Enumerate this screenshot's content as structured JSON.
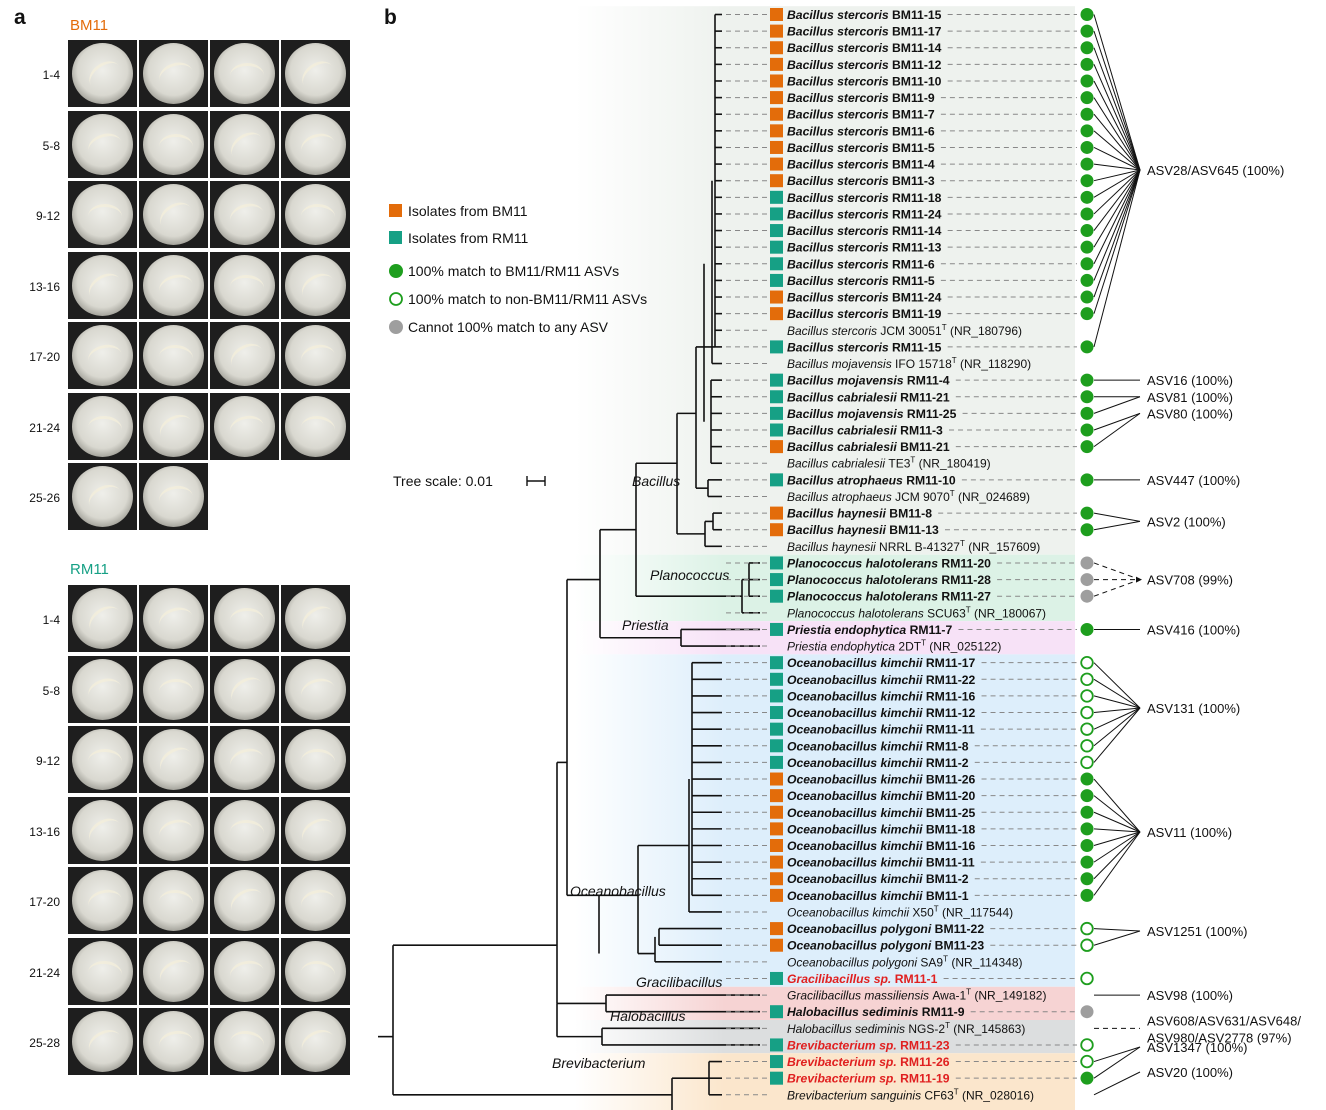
{
  "panel_a": {
    "letter": "a",
    "groups": [
      {
        "title": "BM11",
        "color": "#E36C0A",
        "rows": [
          {
            "label": "1-4",
            "plates": 4
          },
          {
            "label": "5-8",
            "plates": 4
          },
          {
            "label": "9-12",
            "plates": 4
          },
          {
            "label": "13-16",
            "plates": 4
          },
          {
            "label": "17-20",
            "plates": 4
          },
          {
            "label": "21-24",
            "plates": 4
          },
          {
            "label": "25-26",
            "plates": 2
          }
        ]
      },
      {
        "title": "RM11",
        "color": "#16A085",
        "rows": [
          {
            "label": "1-4",
            "plates": 4
          },
          {
            "label": "5-8",
            "plates": 4
          },
          {
            "label": "9-12",
            "plates": 4
          },
          {
            "label": "13-16",
            "plates": 4
          },
          {
            "label": "17-20",
            "plates": 4
          },
          {
            "label": "21-24",
            "plates": 4
          },
          {
            "label": "25-28",
            "plates": 4
          }
        ]
      }
    ]
  },
  "panel_b": {
    "letter": "b",
    "colors": {
      "bm11": "#E36C0A",
      "rm11": "#16A085",
      "match": "#1E9E1E",
      "nomatch": "#9E9E9E",
      "novel": "#E02020"
    },
    "legend": [
      {
        "marker": "square-bm",
        "label": "Isolates from BM11"
      },
      {
        "marker": "square-rm",
        "label": "Isolates from RM11"
      },
      {
        "marker": "circle-filled",
        "label": "100% match to BM11/RM11 ASVs"
      },
      {
        "marker": "circle-open",
        "label": "100% match to non-BM11/RM11 ASVs"
      },
      {
        "marker": "circle-gray",
        "label": "Cannot 100% match to any ASV"
      }
    ],
    "tree_scale": "Tree scale: 0.01",
    "clades": [
      {
        "name": "Bacillus",
        "bg": "#EEF2EE"
      },
      {
        "name": "Planococcus",
        "bg": "#DCF2E6"
      },
      {
        "name": "Priestia",
        "bg": "#F7E2F7"
      },
      {
        "name": "Oceanobacillus",
        "bg": "#DDEEFB"
      },
      {
        "name": "Gracilibacillus",
        "bg": "#F6D3D3"
      },
      {
        "name": "Halobacillus",
        "bg": "#DCDEDF"
      },
      {
        "name": "Brevibacterium",
        "bg": "#FBE6CC"
      }
    ],
    "leaves": [
      {
        "g": "Bacillus stercoris",
        "s": "BM11-15",
        "src": "bm",
        "m": "filled"
      },
      {
        "g": "Bacillus stercoris",
        "s": "BM11-17",
        "src": "bm",
        "m": "filled"
      },
      {
        "g": "Bacillus stercoris",
        "s": "BM11-14",
        "src": "bm",
        "m": "filled"
      },
      {
        "g": "Bacillus stercoris",
        "s": "BM11-12",
        "src": "bm",
        "m": "filled"
      },
      {
        "g": "Bacillus stercoris",
        "s": "BM11-10",
        "src": "bm",
        "m": "filled"
      },
      {
        "g": "Bacillus stercoris",
        "s": "BM11-9",
        "src": "bm",
        "m": "filled"
      },
      {
        "g": "Bacillus stercoris",
        "s": "BM11-7",
        "src": "bm",
        "m": "filled"
      },
      {
        "g": "Bacillus stercoris",
        "s": "BM11-6",
        "src": "bm",
        "m": "filled"
      },
      {
        "g": "Bacillus stercoris",
        "s": "BM11-5",
        "src": "bm",
        "m": "filled"
      },
      {
        "g": "Bacillus stercoris",
        "s": "BM11-4",
        "src": "bm",
        "m": "filled"
      },
      {
        "g": "Bacillus stercoris",
        "s": "BM11-3",
        "src": "bm",
        "m": "filled"
      },
      {
        "g": "Bacillus stercoris",
        "s": "RM11-18",
        "src": "rm",
        "m": "filled"
      },
      {
        "g": "Bacillus stercoris",
        "s": "RM11-24",
        "src": "rm",
        "m": "filled"
      },
      {
        "g": "Bacillus stercoris",
        "s": "RM11-14",
        "src": "rm",
        "m": "filled"
      },
      {
        "g": "Bacillus stercoris",
        "s": "RM11-13",
        "src": "rm",
        "m": "filled"
      },
      {
        "g": "Bacillus stercoris",
        "s": "RM11-6",
        "src": "rm",
        "m": "filled"
      },
      {
        "g": "Bacillus stercoris",
        "s": "RM11-5",
        "src": "rm",
        "m": "filled"
      },
      {
        "g": "Bacillus stercoris",
        "s": "BM11-24",
        "src": "bm",
        "m": "filled"
      },
      {
        "g": "Bacillus stercoris",
        "s": "BM11-19",
        "src": "bm",
        "m": "filled"
      },
      {
        "ref": true,
        "g": "Bacillus stercoris",
        "s": "JCM 30051",
        "t": "T",
        "acc": " (NR_180796)"
      },
      {
        "g": "Bacillus stercoris",
        "s": "RM11-15",
        "src": "rm",
        "m": "filled"
      },
      {
        "ref": true,
        "g": "Bacillus mojavensis",
        "s": "IFO 15718",
        "t": "T",
        "acc": " (NR_118290)"
      },
      {
        "g": "Bacillus mojavensis",
        "s": "RM11-4",
        "src": "rm",
        "m": "filled"
      },
      {
        "g": "Bacillus cabrialesii",
        "s": "RM11-21",
        "src": "rm",
        "m": "filled"
      },
      {
        "g": "Bacillus mojavensis",
        "s": "RM11-25",
        "src": "rm",
        "m": "filled"
      },
      {
        "g": "Bacillus cabrialesii",
        "s": "RM11-3",
        "src": "rm",
        "m": "filled"
      },
      {
        "g": "Bacillus cabrialesii",
        "s": "BM11-21",
        "src": "bm",
        "m": "filled"
      },
      {
        "ref": true,
        "g": "Bacillus cabrialesii",
        "s": "TE3",
        "t": "T",
        "acc": " (NR_180419)"
      },
      {
        "g": "Bacillus atrophaeus",
        "s": "RM11-10",
        "src": "rm",
        "m": "filled"
      },
      {
        "ref": true,
        "g": "Bacillus atrophaeus",
        "s": "JCM 9070",
        "t": "T",
        "acc": " (NR_024689)"
      },
      {
        "g": "Bacillus haynesii",
        "s": "BM11-8",
        "src": "bm",
        "m": "filled"
      },
      {
        "g": "Bacillus haynesii",
        "s": "BM11-13",
        "src": "bm",
        "m": "filled"
      },
      {
        "ref": true,
        "g": "Bacillus haynesii",
        "s": "NRRL B-41327",
        "t": "T",
        "acc": " (NR_157609)"
      },
      {
        "g": "Planococcus halotolerans",
        "s": "RM11-20",
        "src": "rm",
        "m": "gray"
      },
      {
        "g": "Planococcus halotolerans",
        "s": "RM11-28",
        "src": "rm",
        "m": "gray"
      },
      {
        "g": "Planococcus halotolerans",
        "s": "RM11-27",
        "src": "rm",
        "m": "gray"
      },
      {
        "ref": true,
        "g": "Planococcus halotolerans",
        "s": "SCU63",
        "t": "T",
        "acc": " (NR_180067)"
      },
      {
        "g": "Priestia endophytica",
        "s": "RM11-7",
        "src": "rm",
        "m": "filled"
      },
      {
        "ref": true,
        "g": "Priestia endophytica",
        "s": "2DT",
        "t": "T",
        "acc": " (NR_025122)"
      },
      {
        "g": "Oceanobacillus kimchii",
        "s": "RM11-17",
        "src": "rm",
        "m": "open"
      },
      {
        "g": "Oceanobacillus kimchii",
        "s": "RM11-22",
        "src": "rm",
        "m": "open"
      },
      {
        "g": "Oceanobacillus kimchii",
        "s": "RM11-16",
        "src": "rm",
        "m": "open"
      },
      {
        "g": "Oceanobacillus kimchii",
        "s": "RM11-12",
        "src": "rm",
        "m": "open"
      },
      {
        "g": "Oceanobacillus kimchii",
        "s": "RM11-11",
        "src": "rm",
        "m": "open"
      },
      {
        "g": "Oceanobacillus kimchii",
        "s": "RM11-8",
        "src": "rm",
        "m": "open"
      },
      {
        "g": "Oceanobacillus kimchii",
        "s": "RM11-2",
        "src": "rm",
        "m": "open"
      },
      {
        "g": "Oceanobacillus kimchii",
        "s": "BM11-26",
        "src": "bm",
        "m": "filled"
      },
      {
        "g": "Oceanobacillus kimchii",
        "s": "BM11-20",
        "src": "bm",
        "m": "filled"
      },
      {
        "g": "Oceanobacillus kimchii",
        "s": "BM11-25",
        "src": "bm",
        "m": "filled"
      },
      {
        "g": "Oceanobacillus kimchii",
        "s": "BM11-18",
        "src": "bm",
        "m": "filled"
      },
      {
        "g": "Oceanobacillus kimchii",
        "s": "BM11-16",
        "src": "bm",
        "m": "filled"
      },
      {
        "g": "Oceanobacillus kimchii",
        "s": "BM11-11",
        "src": "bm",
        "m": "filled"
      },
      {
        "g": "Oceanobacillus kimchii",
        "s": "BM11-2",
        "src": "bm",
        "m": "filled"
      },
      {
        "g": "Oceanobacillus kimchii",
        "s": "BM11-1",
        "src": "bm",
        "m": "filled"
      },
      {
        "ref": true,
        "g": "Oceanobacillus kimchii",
        "s": "X50",
        "t": "T",
        "acc": " (NR_117544)"
      },
      {
        "g": "Oceanobacillus polygoni",
        "s": "BM11-22",
        "src": "bm",
        "m": "open"
      },
      {
        "g": "Oceanobacillus polygoni",
        "s": "BM11-23",
        "src": "bm",
        "m": "open"
      },
      {
        "ref": true,
        "g": "Oceanobacillus polygoni",
        "s": "SA9",
        "t": "T",
        "acc": " (NR_114348)"
      },
      {
        "g": "Gracilibacillus sp.",
        "s": "RM11-1",
        "src": "rm",
        "m": "open",
        "red": true
      },
      {
        "ref": true,
        "g": "Gracilibacillus massiliensis",
        "s": "Awa-1",
        "t": "T",
        "acc": " (NR_149182)"
      },
      {
        "g": "Halobacillus sediminis",
        "s": "RM11-9",
        "src": "rm",
        "m": "gray"
      },
      {
        "ref": true,
        "g": "Halobacillus sediminis",
        "s": "NGS-2",
        "t": "T",
        "acc": " (NR_145863)"
      },
      {
        "g": "Brevibacterium sp.",
        "s": "RM11-23",
        "src": "rm",
        "m": "open",
        "red": true
      },
      {
        "g": "Brevibacterium sp.",
        "s": "RM11-26",
        "src": "rm",
        "m": "open",
        "red": true
      },
      {
        "g": "Brevibacterium sp.",
        "s": "RM11-19",
        "src": "rm",
        "m": "filled",
        "red": true
      },
      {
        "ref": true,
        "g": "Brevibacterium sanguinis",
        "s": "CF63",
        "t": "T",
        "acc": " (NR_028016)"
      }
    ],
    "asv_labels": [
      "ASV28/ASV645 (100%)",
      "ASV16 (100%)",
      "ASV81 (100%)",
      "ASV80 (100%)",
      "ASV447 (100%)",
      "ASV2 (100%)",
      "ASV708 (99%)",
      "ASV416 (100%)",
      "ASV131 (100%)",
      "ASV11 (100%)",
      "ASV1251 (100%)",
      "ASV98 (100%)",
      "ASV608/ASV631/ASV648/",
      "ASV980/ASV2778 (97%)",
      "ASV1347 (100%)",
      "ASV20 (100%)"
    ]
  }
}
